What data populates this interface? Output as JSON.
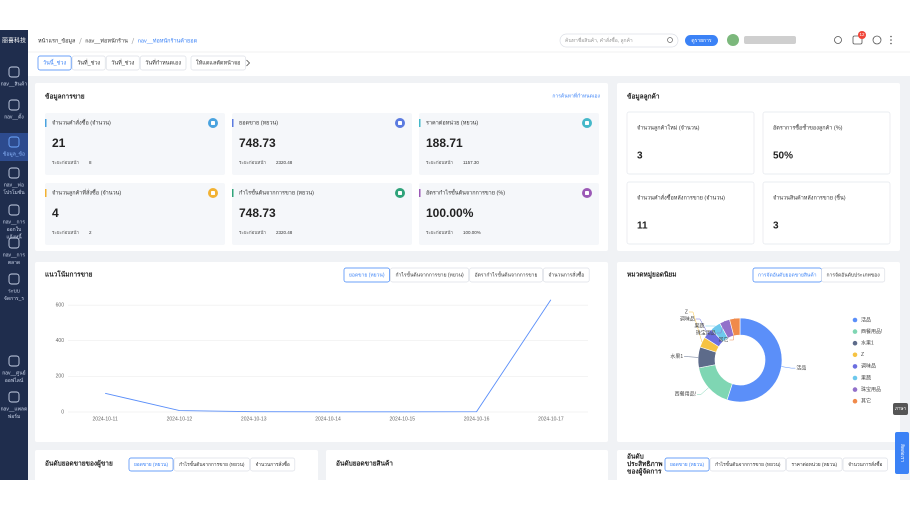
{
  "sidebar": {
    "logo": "丽喜科技",
    "items": [
      {
        "lines": [
          "nav__สินค้า"
        ]
      },
      {
        "lines": [
          "nav__ตั้ง"
        ]
      },
      {
        "lines": [
          "ข้อมูล_ข้อ"
        ]
      },
      {
        "lines": [
          "nav__ท่อ",
          "โปรโมชั่น"
        ]
      },
      {
        "lines": [
          "nav__การ",
          "ออกใบ",
          "แจ้งหนี้"
        ]
      },
      {
        "lines": [
          "nav__การ",
          "ตลาด"
        ]
      },
      {
        "lines": [
          "ระบบ",
          "จัดการ_ร"
        ]
      },
      {
        "lines": [
          "nav__ศูนย์",
          "ออฟไลน์"
        ]
      },
      {
        "lines": [
          "nav__แพลต",
          "ฟอร์ม"
        ]
      }
    ]
  },
  "header": {
    "breadcrumb": [
      "หน้าแรก_ข้อมูล",
      "nav__ท่อหนักร้าน",
      "nav__ท่อหนักร้านค้ายอด"
    ],
    "search_placeholder": "ค้นหาชื่อสินค้า, คำสั่งซื้อ, ลูกค้า",
    "button": "ดูรายการ",
    "notifications": 12
  },
  "date_tabs": [
    "วันนี้_ช่วง",
    "วันที่_ช่วง",
    "วันที่_ช่วง",
    "วันที่กำหนดเอง",
    "ให้แดแลตัดหน้าจอ"
  ],
  "sales": {
    "title": "ข้อมูลการขาย",
    "link": "การค้นหาที่กำหนดเอง",
    "prev_label": "ระยะก่อนหน้า",
    "cards": [
      {
        "label": "จำนวนคำสั่งซื้อ (จำนวน)",
        "value": "21",
        "prev": "8",
        "color": "#4aa3df"
      },
      {
        "label": "ยอดขาย (หยวน)",
        "value": "748.73",
        "prev": "2320.48",
        "color": "#5b7be0"
      },
      {
        "label": "ราคาต่อหน่วย (หยวน)",
        "value": "188.71",
        "prev": "1157.30",
        "color": "#45b8c9"
      },
      {
        "label": "จำนวนลูกค้าที่สั่งซื้อ (จำนวน)",
        "value": "4",
        "prev": "2",
        "color": "#f2b233"
      },
      {
        "label": "กำไรขั้นต้นจากการขาย (หยวน)",
        "value": "748.73",
        "prev": "2320.48",
        "color": "#2fa37a"
      },
      {
        "label": "อัตรากำไรขั้นต้นจากการขาย (%)",
        "value": "100.00%",
        "prev": "100.00%",
        "color": "#9b59b6"
      }
    ]
  },
  "customers": {
    "title": "ข้อมูลลูกค้า",
    "cards": [
      {
        "label": "จำนวนลูกค้าใหม่ (จำนวน)",
        "value": "3"
      },
      {
        "label": "อัตราการซื้อซ้ำของลูกค้า (%)",
        "value": "50%"
      },
      {
        "label": "จำนวนคำสั่งซื้อหลังการขาย (จำนวน)",
        "value": "11"
      },
      {
        "label": "จำนวนสินค้าหลังการขาย (ชิ้น)",
        "value": "3"
      }
    ]
  },
  "trend": {
    "title": "แนวโน้มการขาย",
    "tabs": [
      "ยอดขาย (หยวน)",
      "กำไรขั้นต้นจากการขาย (หยวน)",
      "อัตรากำไรขั้นต้นจากการขาย",
      "จำนวนการสั่งซื้อ"
    ]
  },
  "category": {
    "title": "หมวดหมู่ยอดนิยม",
    "tabs": [
      "การจัดอันดับยอดขายสินค้า",
      "การจัดอันดับประเภทของ"
    ]
  },
  "rankings": [
    {
      "title": [
        "อันดับยอดขายของผู้ขาย"
      ],
      "tabs": [
        "ยอดขาย (หยวน)",
        "กำไรขั้นต้นจากการขาย (หยวน)",
        "จำนวนการสั่งซื้อ"
      ]
    },
    {
      "title": [
        "อันดับยอดขายสินค้า"
      ]
    },
    {
      "title": [
        "อันดับ",
        "ประสิทธิภาพ",
        "ของผู้จัดการ"
      ],
      "tabs": [
        "ยอดขาย (หยวน)",
        "กำไรขั้นต้นจากการขาย (หยวน)",
        "ราคาต่อหน่วย (หยวน)",
        "จำนวนการสั่งซื้อ"
      ]
    }
  ],
  "float": {
    "language": "ภาษา",
    "contact": "ติดต่อเรา"
  },
  "chart_data": [
    {
      "type": "line",
      "categories": [
        "2024-10-11",
        "2024-10-12",
        "2024-10-13",
        "2024-10-14",
        "2024-10-15",
        "2024-10-16",
        "2024-10-17"
      ],
      "values": [
        105,
        8,
        2,
        1,
        1,
        2,
        630
      ],
      "color": "#5b8ff9",
      "ylim": [
        0,
        640
      ],
      "yticks": [
        0,
        200,
        400,
        600
      ],
      "grid": true
    },
    {
      "type": "pie",
      "categories": [
        "活品",
        "西餐用品!",
        "水果1",
        "Z",
        "调味品",
        "果蔬",
        "珠宝用品",
        "其它"
      ],
      "values": [
        55,
        17,
        8,
        4,
        4,
        4,
        4,
        4
      ],
      "colors": [
        "#5b8ff9",
        "#7fd6b3",
        "#5d6b8a",
        "#f6c343",
        "#6b6ee0",
        "#6dc8ec",
        "#9270ca",
        "#f08a4b"
      ]
    }
  ]
}
